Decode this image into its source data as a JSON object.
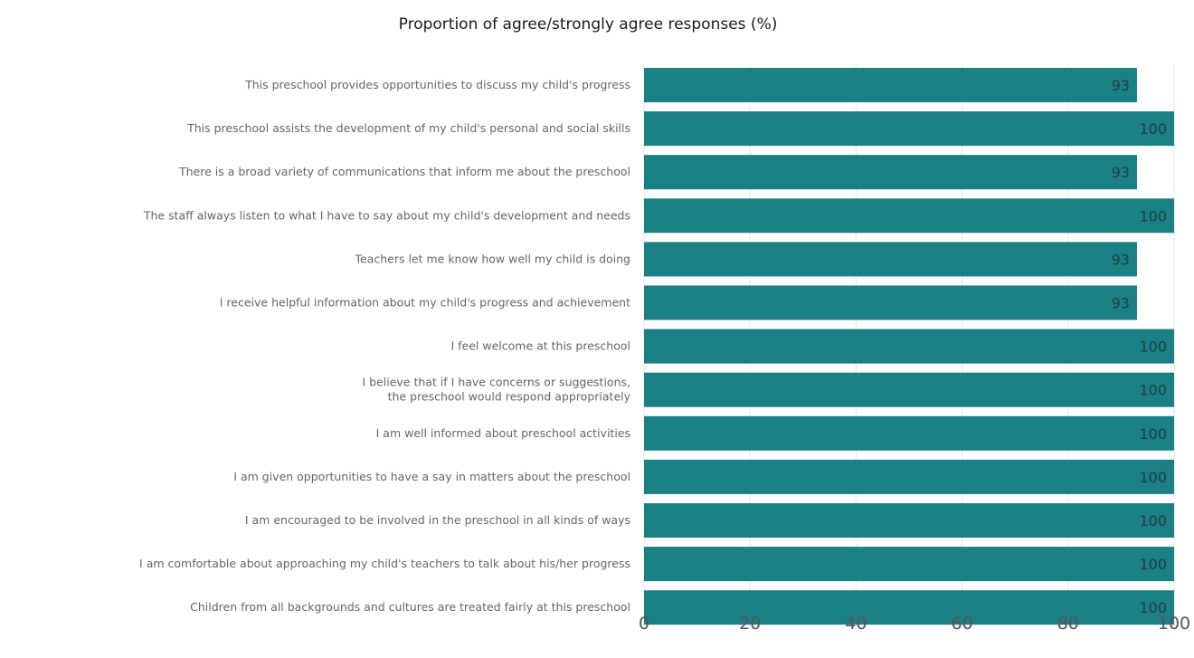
{
  "chart_data": {
    "type": "bar",
    "orientation": "horizontal",
    "title": "Proportion of agree/strongly agree responses (%)",
    "xlabel": "",
    "ylabel": "",
    "xlim": [
      0,
      100
    ],
    "x_ticks": [
      0,
      20,
      40,
      60,
      80,
      100
    ],
    "grid": true,
    "legend": "none",
    "bar_color": "#1b7f86",
    "categories": [
      [
        "This preschool provides opportunities to discuss my child's progress"
      ],
      [
        "This preschool assists the development of my child's personal and social skills"
      ],
      [
        "There is a broad variety of communications that inform me about the preschool"
      ],
      [
        "The staff always listen to what I have to say about my child's development and needs"
      ],
      [
        "Teachers let me know how well my child is doing"
      ],
      [
        "I receive helpful information about my child's progress and achievement"
      ],
      [
        "I feel welcome at this preschool"
      ],
      [
        "I believe that if I have concerns or suggestions,",
        "the preschool would respond appropriately"
      ],
      [
        "I am well informed about preschool activities"
      ],
      [
        "I am given opportunities to have a say in matters about the preschool"
      ],
      [
        "I am encouraged to be involved in the preschool in all kinds of ways"
      ],
      [
        "I am comfortable about approaching my child's teachers to talk about his/her progress"
      ],
      [
        "Children from all backgrounds and cultures are treated fairly at this preschool"
      ]
    ],
    "values": [
      93,
      100,
      93,
      100,
      93,
      93,
      100,
      100,
      100,
      100,
      100,
      100,
      100
    ]
  }
}
